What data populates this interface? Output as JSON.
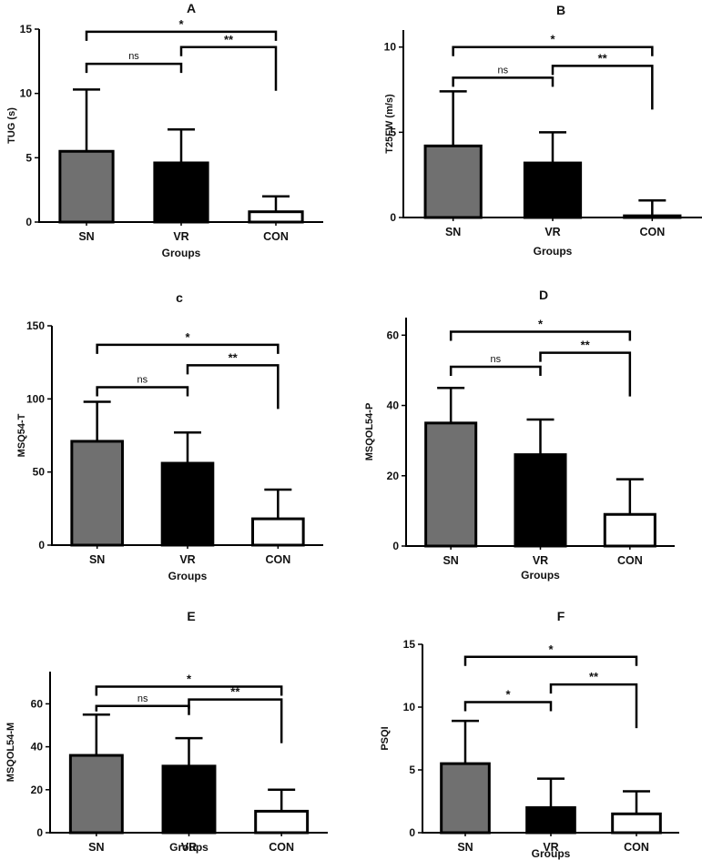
{
  "chart_data": [
    {
      "id": "A",
      "type": "bar",
      "title": "A",
      "xlabel": "Groups",
      "ylabel": "TUG (s)",
      "ylim": [
        0,
        15
      ],
      "yticks": [
        0,
        5,
        10,
        15
      ],
      "categories": [
        "SN",
        "VR",
        "CON"
      ],
      "values": [
        5.5,
        4.6,
        0.8
      ],
      "errors": [
        4.8,
        2.6,
        1.2
      ],
      "fills": [
        "#707070",
        "#000000",
        "#ffffff"
      ],
      "significance": [
        {
          "from": 0,
          "to": 1,
          "label": "ns",
          "y": 12.3
        },
        {
          "from": 1,
          "to": 2,
          "label": "**",
          "y": 13.6
        },
        {
          "from": 0,
          "to": 2,
          "label": "*",
          "y": 14.8
        }
      ]
    },
    {
      "id": "B",
      "type": "bar",
      "title": "B",
      "xlabel": "Groups",
      "ylabel": "T25FW (m/s)",
      "ylim": [
        0,
        11
      ],
      "yticks": [
        0,
        5,
        10
      ],
      "categories": [
        "SN",
        "VR",
        "CON"
      ],
      "values": [
        4.2,
        3.2,
        0.1
      ],
      "errors": [
        3.2,
        1.8,
        0.9
      ],
      "fills": [
        "#707070",
        "#000000",
        "#ffffff"
      ],
      "significance": [
        {
          "from": 0,
          "to": 1,
          "label": "ns",
          "y": 8.2
        },
        {
          "from": 1,
          "to": 2,
          "label": "**",
          "y": 8.9
        },
        {
          "from": 0,
          "to": 2,
          "label": "*",
          "y": 10.0
        }
      ]
    },
    {
      "id": "C",
      "type": "bar",
      "title": "c",
      "xlabel": "Groups",
      "ylabel": "MSQ54-T",
      "ylim": [
        0,
        150
      ],
      "yticks": [
        0,
        50,
        100,
        150
      ],
      "categories": [
        "SN",
        "VR",
        "CON"
      ],
      "values": [
        71,
        56,
        18
      ],
      "errors": [
        27,
        21,
        20
      ],
      "fills": [
        "#707070",
        "#000000",
        "#ffffff"
      ],
      "significance": [
        {
          "from": 0,
          "to": 1,
          "label": "ns",
          "y": 108
        },
        {
          "from": 1,
          "to": 2,
          "label": "**",
          "y": 123
        },
        {
          "from": 0,
          "to": 2,
          "label": "*",
          "y": 137
        }
      ]
    },
    {
      "id": "D",
      "type": "bar",
      "title": "D",
      "xlabel": "Groups",
      "ylabel": "MSQOL54-P",
      "ylim": [
        0,
        65
      ],
      "yticks": [
        0,
        20,
        40,
        60
      ],
      "categories": [
        "SN",
        "VR",
        "CON"
      ],
      "values": [
        35,
        26,
        9
      ],
      "errors": [
        10,
        10,
        10
      ],
      "fills": [
        "#707070",
        "#000000",
        "#ffffff"
      ],
      "significance": [
        {
          "from": 0,
          "to": 1,
          "label": "ns",
          "y": 51
        },
        {
          "from": 1,
          "to": 2,
          "label": "**",
          "y": 55
        },
        {
          "from": 0,
          "to": 2,
          "label": "*",
          "y": 61
        }
      ]
    },
    {
      "id": "E",
      "type": "bar",
      "title": "E",
      "xlabel": "Groups",
      "ylabel": "MSQOL54-M",
      "ylim": [
        0,
        75
      ],
      "yticks": [
        0,
        20,
        40,
        60
      ],
      "categories": [
        "SN",
        "VR",
        "CON"
      ],
      "values": [
        36,
        31,
        10
      ],
      "errors": [
        19,
        13,
        10
      ],
      "fills": [
        "#707070",
        "#000000",
        "#ffffff"
      ],
      "significance": [
        {
          "from": 0,
          "to": 1,
          "label": "ns",
          "y": 59
        },
        {
          "from": 1,
          "to": 2,
          "label": "**",
          "y": 62
        },
        {
          "from": 0,
          "to": 2,
          "label": "*",
          "y": 68
        }
      ]
    },
    {
      "id": "F",
      "type": "bar",
      "title": "F",
      "xlabel": "Groups",
      "ylabel": "PSQI",
      "ylim": [
        0,
        15
      ],
      "yticks": [
        0,
        5,
        10,
        15
      ],
      "categories": [
        "SN",
        "VR",
        "CON"
      ],
      "values": [
        5.5,
        2.0,
        1.5
      ],
      "errors": [
        3.4,
        2.3,
        1.8
      ],
      "fills": [
        "#707070",
        "#000000",
        "#ffffff"
      ],
      "significance": [
        {
          "from": 0,
          "to": 1,
          "label": "*",
          "y": 10.4
        },
        {
          "from": 1,
          "to": 2,
          "label": "**",
          "y": 11.8
        },
        {
          "from": 0,
          "to": 2,
          "label": "*",
          "y": 14.0
        }
      ]
    }
  ]
}
